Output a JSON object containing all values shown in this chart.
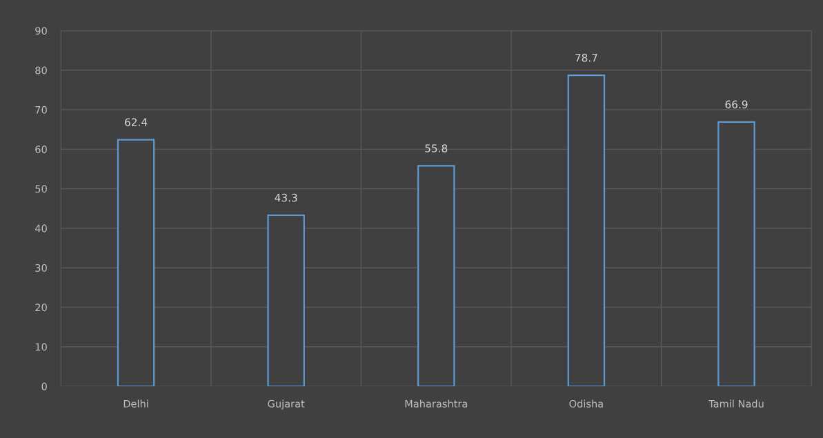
{
  "chart_data": {
    "type": "bar",
    "categories": [
      "Delhi",
      "Gujarat",
      "Maharashtra",
      "Odisha",
      "Tamil Nadu"
    ],
    "values": [
      62.4,
      43.3,
      55.8,
      78.7,
      66.9
    ],
    "color": "#5b9bd5",
    "ylim": [
      0,
      90
    ],
    "yticks": [
      0,
      10,
      20,
      30,
      40,
      50,
      60,
      70,
      80,
      90
    ],
    "grid": true,
    "data_labels": true
  }
}
